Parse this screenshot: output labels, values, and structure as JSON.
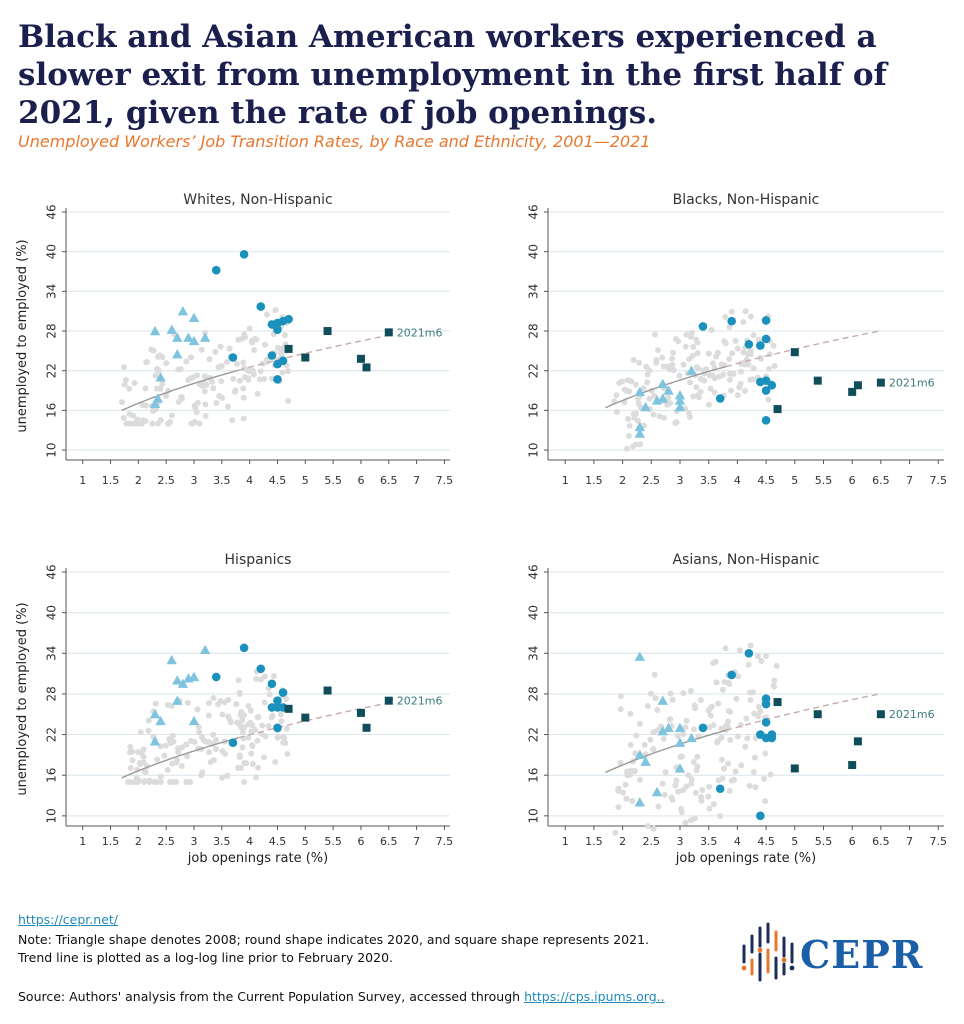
{
  "title": "Black and Asian American workers experienced a slower exit from unemployment in the first half of 2021, given the rate of job openings.",
  "subtitle": "Unemployed Workers’ Job Transition Rates, by Race and Ethnicity, 2001—2021",
  "footer": {
    "link": "https://cepr.net/",
    "note_line1": "Note: Triangle shape denotes 2008; round shape indicates 2020, and square shape represents 2021.",
    "note_line2": "Trend line is plotted as a log-log line prior to February 2020.",
    "source_prefix": "Source: Authors' analysis from the Current Population Survey, accessed through ",
    "source_link": "https://cps.ipums.org.."
  },
  "logo": {
    "text": "CEPR",
    "icon": "cepr-logo-icon"
  },
  "colors": {
    "background_points": "#dcdcdc",
    "year_2008": "#7ec4df",
    "year_2020": "#1a90bd",
    "year_2021": "#0f4d5a",
    "trend_solid": "#9a9a9a",
    "trend_dashed": "#c7aaaa",
    "grid": "#d8e6ec",
    "axis_text": "#333333"
  },
  "chart_data": [
    {
      "type": "scatter",
      "title": "Whites, Non-Hispanic",
      "ylabel": "unemployed to employed (%)",
      "xlabel": "",
      "xlim": [
        0.7,
        7.6
      ],
      "ylim": [
        8.5,
        46
      ],
      "xticks": [
        "1",
        "1.5",
        "2",
        "2.5",
        "3",
        "3.5",
        "4",
        "4.5",
        "5",
        "5.5",
        "6",
        "6.5",
        "7",
        "7.5"
      ],
      "yticks": [
        "10",
        "16",
        "22",
        "28",
        "34",
        "40",
        "46"
      ],
      "trend": {
        "a": 16,
        "split": 3.8,
        "xmin": 1.7,
        "xmax": 6.5
      },
      "cloud": {
        "xmin": 1.7,
        "xmax": 4.7,
        "ymin": 14,
        "ymax": 38,
        "center_offset": 0,
        "spread": 4
      },
      "annotation": {
        "text": "2021m6",
        "x": 6.5,
        "y": 27.8
      },
      "year_2008": [
        [
          2.3,
          28
        ],
        [
          2.3,
          17
        ],
        [
          2.35,
          17.8
        ],
        [
          2.4,
          21
        ],
        [
          2.6,
          28.2
        ],
        [
          2.7,
          27
        ],
        [
          2.7,
          24.5
        ],
        [
          2.8,
          31
        ],
        [
          2.9,
          27
        ],
        [
          3.0,
          26.5
        ],
        [
          3.0,
          30
        ],
        [
          3.2,
          27
        ]
      ],
      "year_2020": [
        [
          3.4,
          37.2
        ],
        [
          3.9,
          39.6
        ],
        [
          4.2,
          31.7
        ],
        [
          4.4,
          29
        ],
        [
          4.5,
          28.2
        ],
        [
          4.5,
          29.2
        ],
        [
          4.6,
          29.5
        ],
        [
          4.7,
          29.8
        ],
        [
          4.4,
          24.3
        ],
        [
          4.5,
          23
        ],
        [
          4.6,
          23.5
        ],
        [
          4.5,
          20.7
        ],
        [
          3.7,
          24
        ]
      ],
      "year_2021": [
        [
          4.7,
          25.3
        ],
        [
          5.0,
          24
        ],
        [
          5.4,
          28
        ],
        [
          6.0,
          23.8
        ],
        [
          6.1,
          22.5
        ],
        [
          6.5,
          27.8
        ]
      ]
    },
    {
      "type": "scatter",
      "title": "Blacks, Non-Hispanic",
      "ylabel": "",
      "xlabel": "",
      "xlim": [
        0.7,
        7.6
      ],
      "ylim": [
        8.5,
        46
      ],
      "xticks": [
        "1",
        "1.5",
        "2",
        "2.5",
        "3",
        "3.5",
        "4",
        "4.5",
        "5",
        "5.5",
        "6",
        "6.5",
        "7",
        "7.5"
      ],
      "yticks": [
        "10",
        "16",
        "22",
        "28",
        "34",
        "40",
        "46"
      ],
      "trend": {
        "a": 16.4,
        "split": 3.8,
        "xmin": 1.7,
        "xmax": 6.5
      },
      "cloud": {
        "xmin": 1.8,
        "xmax": 4.7,
        "ymin": 9.5,
        "ymax": 31,
        "center_offset": 0,
        "spread": 4
      },
      "annotation": {
        "text": "2021m6",
        "x": 6.5,
        "y": 20.2
      },
      "year_2008": [
        [
          2.3,
          13.5
        ],
        [
          2.3,
          12.5
        ],
        [
          2.3,
          18.8
        ],
        [
          2.4,
          16.5
        ],
        [
          2.6,
          17.5
        ],
        [
          2.7,
          17.8
        ],
        [
          2.7,
          20
        ],
        [
          2.8,
          19
        ],
        [
          3.0,
          16.5
        ],
        [
          3.0,
          17.5
        ],
        [
          3.0,
          18.3
        ],
        [
          3.2,
          22
        ]
      ],
      "year_2020": [
        [
          3.4,
          28.7
        ],
        [
          3.9,
          29.5
        ],
        [
          4.5,
          29.6
        ],
        [
          4.2,
          26
        ],
        [
          4.4,
          25.8
        ],
        [
          4.5,
          26.8
        ],
        [
          4.5,
          20.5
        ],
        [
          4.6,
          19.8
        ],
        [
          4.5,
          19
        ],
        [
          4.5,
          14.5
        ],
        [
          3.7,
          17.8
        ],
        [
          4.4,
          20.3
        ]
      ],
      "year_2021": [
        [
          4.7,
          16.2
        ],
        [
          5.0,
          24.8
        ],
        [
          5.4,
          20.5
        ],
        [
          6.0,
          18.8
        ],
        [
          6.1,
          19.8
        ],
        [
          6.5,
          20.2
        ]
      ]
    },
    {
      "type": "scatter",
      "title": "Hispanics",
      "ylabel": "unemployed to employed (%)",
      "xlabel": "job openings rate (%)",
      "xlim": [
        0.7,
        7.6
      ],
      "ylim": [
        8.5,
        46
      ],
      "xticks": [
        "1",
        "1.5",
        "2",
        "2.5",
        "3",
        "3.5",
        "4",
        "4.5",
        "5",
        "5.5",
        "6",
        "6.5",
        "7",
        "7.5"
      ],
      "yticks": [
        "10",
        "16",
        "22",
        "28",
        "34",
        "40",
        "46"
      ],
      "trend": {
        "a": 15.6,
        "split": 3.8,
        "xmin": 1.7,
        "xmax": 6.5
      },
      "cloud": {
        "xmin": 1.8,
        "xmax": 4.7,
        "ymin": 15,
        "ymax": 40,
        "center_offset": 1,
        "spread": 4
      },
      "annotation": {
        "text": "2021m6",
        "x": 6.5,
        "y": 27
      },
      "year_2008": [
        [
          2.3,
          25
        ],
        [
          2.3,
          21
        ],
        [
          2.4,
          24
        ],
        [
          2.6,
          33
        ],
        [
          2.7,
          30
        ],
        [
          2.7,
          27
        ],
        [
          2.8,
          29.5
        ],
        [
          2.9,
          30.3
        ],
        [
          3.0,
          30.5
        ],
        [
          3.0,
          24
        ],
        [
          3.2,
          34.5
        ]
      ],
      "year_2020": [
        [
          3.4,
          30.5
        ],
        [
          3.9,
          34.8
        ],
        [
          4.2,
          31.7
        ],
        [
          4.4,
          29.5
        ],
        [
          4.5,
          26
        ],
        [
          4.5,
          27
        ],
        [
          4.6,
          26
        ],
        [
          4.6,
          28.2
        ],
        [
          4.5,
          23
        ],
        [
          3.7,
          20.8
        ],
        [
          4.4,
          26
        ]
      ],
      "year_2021": [
        [
          4.7,
          25.8
        ],
        [
          5.0,
          24.5
        ],
        [
          5.4,
          28.5
        ],
        [
          6.0,
          25.2
        ],
        [
          6.1,
          23
        ],
        [
          6.5,
          27
        ]
      ]
    },
    {
      "type": "scatter",
      "title": "Asians, Non-Hispanic",
      "ylabel": "",
      "xlabel": "job openings rate (%)",
      "xlim": [
        0.7,
        7.6
      ],
      "ylim": [
        8.5,
        46
      ],
      "xticks": [
        "1",
        "1.5",
        "2",
        "2.5",
        "3",
        "3.5",
        "4",
        "4.5",
        "5",
        "5.5",
        "6",
        "6.5",
        "7",
        "7.5"
      ],
      "yticks": [
        "10",
        "16",
        "22",
        "28",
        "34",
        "40",
        "46"
      ],
      "trend": {
        "a": 16.4,
        "split": 3.8,
        "xmin": 1.7,
        "xmax": 6.5
      },
      "cloud": {
        "xmin": 1.8,
        "xmax": 4.7,
        "ymin": 7.5,
        "ymax": 45,
        "center_offset": 0,
        "spread": 7
      },
      "annotation": {
        "text": "2021m6",
        "x": 6.5,
        "y": 25
      },
      "year_2008": [
        [
          2.3,
          33.5
        ],
        [
          2.3,
          19
        ],
        [
          2.3,
          12
        ],
        [
          2.4,
          18
        ],
        [
          2.6,
          13.5
        ],
        [
          2.7,
          27
        ],
        [
          2.7,
          22.5
        ],
        [
          2.8,
          23
        ],
        [
          3.0,
          23
        ],
        [
          3.0,
          20.8
        ],
        [
          3.0,
          17
        ],
        [
          3.2,
          21.5
        ]
      ],
      "year_2020": [
        [
          3.4,
          23
        ],
        [
          3.9,
          30.8
        ],
        [
          4.2,
          34
        ],
        [
          4.4,
          22
        ],
        [
          4.5,
          26.5
        ],
        [
          4.5,
          27.3
        ],
        [
          4.5,
          23.8
        ],
        [
          4.6,
          21.5
        ],
        [
          4.6,
          22
        ],
        [
          4.5,
          21.5
        ],
        [
          3.7,
          14
        ],
        [
          4.4,
          10
        ]
      ],
      "year_2021": [
        [
          4.7,
          26.8
        ],
        [
          5.0,
          17
        ],
        [
          5.4,
          25
        ],
        [
          6.0,
          17.5
        ],
        [
          6.1,
          21
        ],
        [
          6.5,
          25
        ]
      ]
    }
  ]
}
